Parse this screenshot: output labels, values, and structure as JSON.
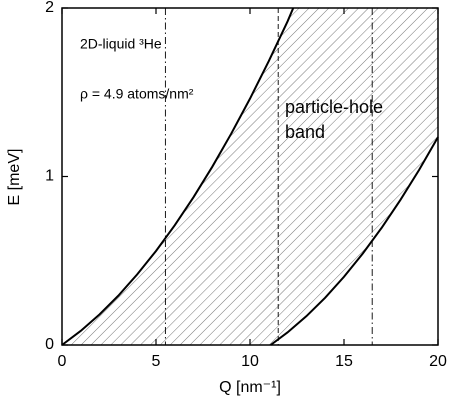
{
  "chart_data": {
    "type": "area",
    "xlabel": "Q [nm⁻¹]",
    "ylabel": "E [meV]",
    "xlim": [
      0,
      20
    ],
    "ylim": [
      0,
      2
    ],
    "xticks": [
      0,
      5,
      10,
      15,
      20
    ],
    "yticks": [
      0,
      1,
      2
    ],
    "color": "#000000",
    "hatch": true,
    "series": [
      {
        "x": [
          0,
          1,
          2,
          3,
          4,
          5,
          6,
          7,
          8,
          9,
          10,
          11,
          12,
          12.3
        ],
        "values": [
          0,
          0.084,
          0.182,
          0.293,
          0.419,
          0.558,
          0.711,
          0.878,
          1.059,
          1.254,
          1.462,
          1.685,
          1.921,
          2.0
        ]
      },
      {
        "x": [
          11.1,
          12,
          13,
          14,
          15,
          16,
          17,
          18,
          19,
          20
        ],
        "values": [
          0,
          0.075,
          0.171,
          0.281,
          0.405,
          0.543,
          0.695,
          0.861,
          1.04,
          1.234
        ]
      }
    ],
    "vlines": [
      {
        "x": 5.5,
        "style": "dashdot"
      },
      {
        "x": 11.5,
        "style": "dashed"
      },
      {
        "x": 16.5,
        "style": "dashdot"
      }
    ],
    "annotations": [
      "2D-liquid ³He",
      "ρ = 4.9 atoms/nm²"
    ],
    "band_label": [
      "particle-hole",
      "band"
    ]
  }
}
